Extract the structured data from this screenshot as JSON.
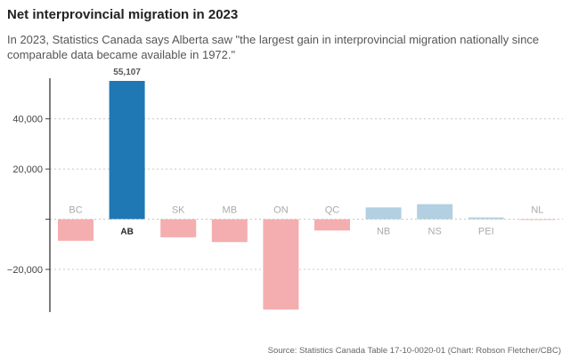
{
  "chart_data": {
    "type": "bar",
    "title": "Net interprovincial migration in 2023",
    "subtitle": "In 2023, Statistics Canada says Alberta saw \"the largest gain in interprovincial migration nationally since comparable data became available in 1972.\"",
    "source": "Source: Statistics Canada Table 17-10-0020-01 (Chart: Robson Fletcher/CBC)",
    "categories": [
      "BC",
      "AB",
      "SK",
      "MB",
      "ON",
      "QC",
      "NB",
      "NS",
      "PEI",
      "NL"
    ],
    "values": [
      -8600,
      55107,
      -7200,
      -9100,
      -36000,
      -4500,
      4700,
      6000,
      700,
      -100
    ],
    "highlight": "AB",
    "data_labels": {
      "AB": "55,107"
    },
    "ylim": [
      -37000,
      55107
    ],
    "yticks": [
      -20000,
      20000,
      40000
    ],
    "ytick_labels": [
      "−20,000",
      "20,000",
      "40,000"
    ],
    "xlabel": "",
    "ylabel": "",
    "grid": true,
    "colors": {
      "highlight": "#1f77b4",
      "negative": "#f4aeb0",
      "positive": "#b3cfe2",
      "axis": "#444444",
      "grid": "#c8c8c8"
    }
  }
}
